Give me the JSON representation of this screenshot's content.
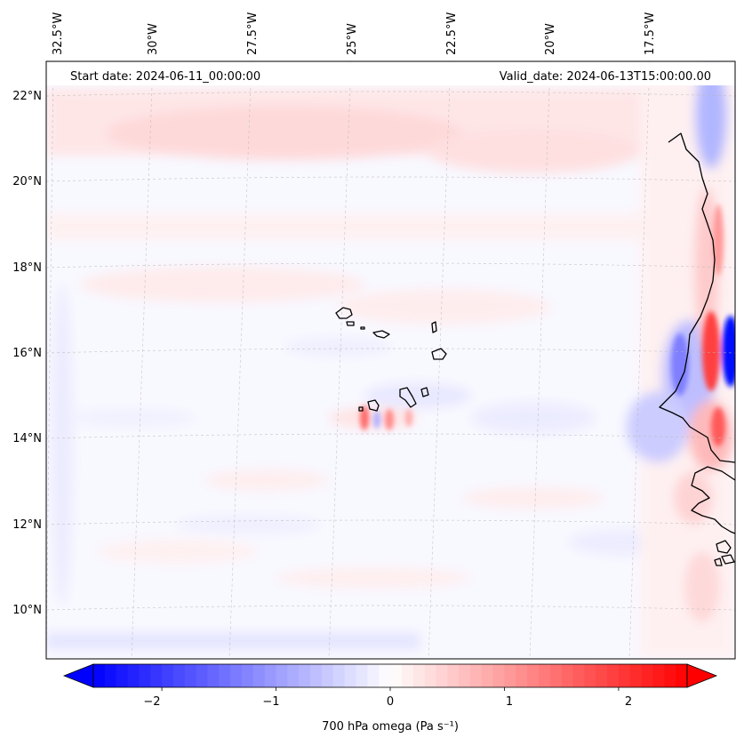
{
  "header": {
    "start_date": "Start date: 2024-06-11_00:00:00",
    "valid_date": "Valid_date: 2024-06-13T15:00:00.00"
  },
  "map": {
    "longitude_labels": [
      "32.5°W",
      "30°W",
      "27.5°W",
      "25°W",
      "22.5°W",
      "20°W",
      "17.5°W"
    ],
    "latitude_labels": [
      "22°N",
      "20°N",
      "18°N",
      "16°N",
      "14°N",
      "12°N",
      "10°N"
    ],
    "longitudes": [
      -32.5,
      -30,
      -27.5,
      -25,
      -22.5,
      -20,
      -17.5
    ],
    "latitudes": [
      22,
      20,
      18,
      16,
      14,
      12,
      10
    ],
    "extent": {
      "lon_min": -32.5,
      "lon_max": -15.0,
      "lat_min": 8.9,
      "lat_max": 22.8
    }
  },
  "colorbar": {
    "tick_labels": [
      "−2",
      "−1",
      "0",
      "1",
      "2"
    ],
    "ticks": [
      -2,
      -1,
      0,
      1,
      2
    ],
    "range": [
      -2.6,
      2.6
    ],
    "levels": 52,
    "label": "700 hPa omega (Pa s⁻¹)",
    "low_color": "#0000ff",
    "mid_color": "#ffffff",
    "high_color": "#ff0000"
  },
  "colors": {
    "frame": "#000000",
    "gridline": "#b0b0b0",
    "coastline": "#000000"
  }
}
